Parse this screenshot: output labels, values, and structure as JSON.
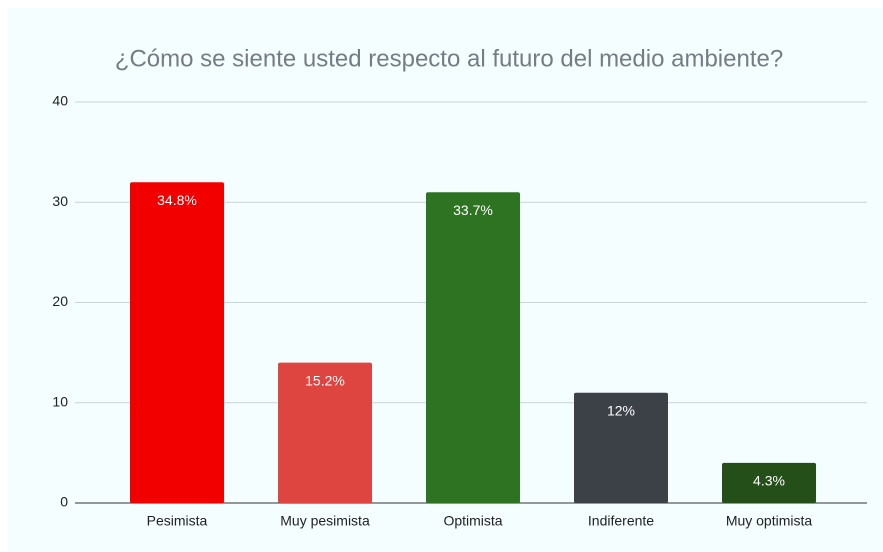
{
  "chart_data": {
    "type": "bar",
    "title": "¿Cómo se siente usted respecto al futuro del medio ambiente?",
    "categories": [
      "Pesimista",
      "Muy pesimista",
      "Optimista",
      "Indiferente",
      "Muy optimista"
    ],
    "values": [
      32,
      14,
      31,
      11,
      4
    ],
    "value_labels": [
      "34.8%",
      "15.2%",
      "33.7%",
      "12%",
      "4.3%"
    ],
    "colors": [
      "#f20000",
      "#de4440",
      "#2e7322",
      "#3c4148",
      "#244f18"
    ],
    "ylim": [
      0,
      40
    ],
    "yticks": [
      0,
      10,
      20,
      30,
      40
    ],
    "grid": true
  }
}
